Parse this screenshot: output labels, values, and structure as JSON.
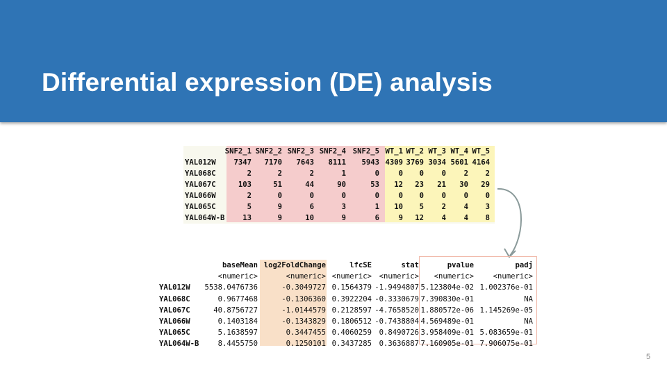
{
  "slide": {
    "title": "Differential expression (DE) analysis",
    "page_number": "5"
  },
  "counts_table": {
    "columns": [
      "SNF2_1",
      "SNF2_2",
      "SNF2_3",
      "SNF2_4",
      "SNF2_5",
      "WT_1",
      "WT_2",
      "WT_3",
      "WT_4",
      "WT_5"
    ],
    "rows": [
      {
        "gene": "YAL012W",
        "values": [
          "7347",
          "7170",
          "7643",
          "8111",
          "5943",
          "4309",
          "3769",
          "3034",
          "5601",
          "4164"
        ]
      },
      {
        "gene": "YAL068C",
        "values": [
          "2",
          "2",
          "2",
          "1",
          "0",
          "0",
          "0",
          "0",
          "2",
          "2"
        ]
      },
      {
        "gene": "YAL067C",
        "values": [
          "103",
          "51",
          "44",
          "90",
          "53",
          "12",
          "23",
          "21",
          "30",
          "29"
        ]
      },
      {
        "gene": "YAL066W",
        "values": [
          "2",
          "0",
          "0",
          "0",
          "0",
          "0",
          "0",
          "0",
          "0",
          "0"
        ]
      },
      {
        "gene": "YAL065C",
        "values": [
          "5",
          "9",
          "6",
          "3",
          "1",
          "10",
          "5",
          "2",
          "4",
          "3"
        ]
      },
      {
        "gene": "YAL064W-B",
        "values": [
          "13",
          "9",
          "10",
          "9",
          "6",
          "9",
          "12",
          "4",
          "4",
          "8"
        ]
      }
    ],
    "snf_bg": "#f5cccc",
    "wt_bg": "#fcf5ba"
  },
  "results_table": {
    "columns": [
      "baseMean",
      "log2FoldChange",
      "lfcSE",
      "stat",
      "pvalue",
      "padj"
    ],
    "types": [
      "<numeric>",
      "<numeric>",
      "<numeric>",
      "<numeric>",
      "<numeric>",
      "<numeric>"
    ],
    "rows": [
      {
        "gene": "YAL012W",
        "values": [
          "5538.0476736",
          "-0.3049727",
          "0.1564379",
          "-1.9494807",
          "5.123804e-02",
          "1.002376e-01"
        ]
      },
      {
        "gene": "YAL068C",
        "values": [
          "0.9677468",
          "-0.1306360",
          "0.3922204",
          "-0.3330679",
          "7.390830e-01",
          "NA"
        ]
      },
      {
        "gene": "YAL067C",
        "values": [
          "40.8756727",
          "-1.0144579",
          "0.2128597",
          "-4.7658520",
          "1.880572e-06",
          "1.145269e-05"
        ]
      },
      {
        "gene": "YAL066W",
        "values": [
          "0.1403184",
          "-0.1343829",
          "0.1806512",
          "-0.7438804",
          "4.569489e-01",
          "NA"
        ]
      },
      {
        "gene": "YAL065C",
        "values": [
          "5.1638597",
          "0.3447455",
          "0.4060259",
          "0.8490726",
          "3.958409e-01",
          "5.083659e-01"
        ]
      },
      {
        "gene": "YAL064W-B",
        "values": [
          "8.4455750",
          "0.1250101",
          "0.3437285",
          "0.3636887",
          "7.160905e-01",
          "7.906075e-01"
        ]
      }
    ],
    "lfc_bg": "#f9e0c8",
    "pvalue_box_color": "#f0b8a8"
  },
  "colors": {
    "header_bg": "#2f74b5",
    "arrow": "#8a9a9a"
  }
}
